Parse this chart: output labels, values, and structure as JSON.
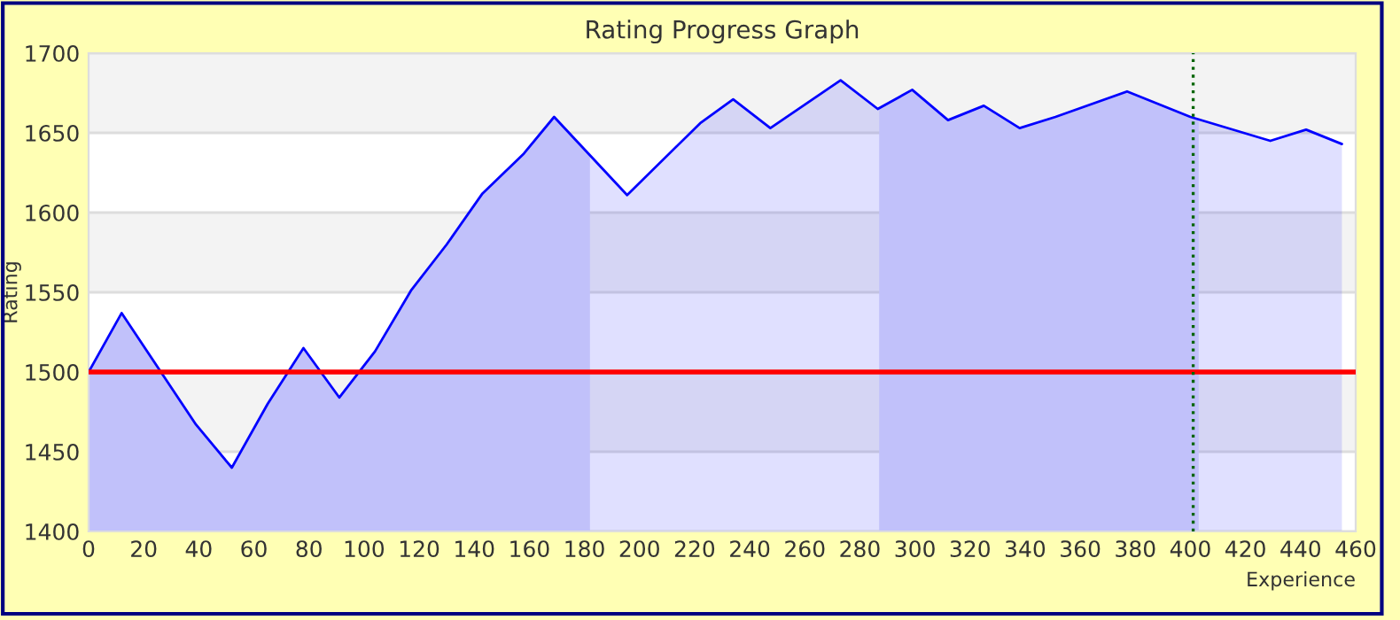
{
  "chart_data": {
    "type": "area",
    "title": "Rating Progress Graph",
    "xlabel": "Experience",
    "ylabel": "Rating",
    "series": [
      {
        "color": "#0000ff",
        "x": [
          0,
          12,
          39,
          52,
          65,
          78,
          91,
          104,
          117,
          130,
          143,
          158,
          169,
          195.5,
          222,
          234,
          247.5,
          273,
          286.5,
          299,
          312,
          325,
          338,
          351,
          377,
          400,
          429,
          442,
          455
        ],
        "values": [
          1500,
          1537,
          1467,
          1440,
          1480,
          1515,
          1484,
          1513,
          1551,
          1580,
          1612,
          1637,
          1660,
          1611,
          1656,
          1671,
          1653,
          1683,
          1665,
          1677,
          1658,
          1667,
          1653,
          1660,
          1676,
          1660,
          1645,
          1652,
          1643
        ]
      }
    ],
    "bands": [
      {
        "axis": "x",
        "from": 0,
        "to": 182,
        "color": "#dcdcfa"
      },
      {
        "axis": "x",
        "from": 287,
        "to": 403,
        "color": "#dcdcfa"
      }
    ],
    "ref_lines": [
      {
        "axis": "y",
        "value": 1500,
        "color": "#ff0000",
        "line_style": "solid"
      },
      {
        "axis": "x",
        "value": 401,
        "color": "#006400",
        "line_style": "dotted"
      }
    ],
    "xlim": [
      0,
      460
    ],
    "xticks": [
      0,
      20,
      40,
      60,
      80,
      100,
      120,
      140,
      160,
      180,
      200,
      220,
      240,
      260,
      280,
      300,
      320,
      340,
      360,
      380,
      400,
      420,
      440,
      460
    ],
    "ylim": [
      1400,
      1700
    ],
    "yticks": [
      1400,
      1450,
      1500,
      1550,
      1600,
      1650,
      1700
    ],
    "grid": "y",
    "legend": false
  }
}
